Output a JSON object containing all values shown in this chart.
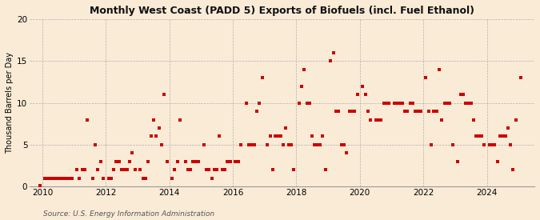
{
  "title": "Monthly West Coast (PADD 5) Exports of Biofuels (incl. Fuel Ethanol)",
  "ylabel": "Thousand Barrels per Day",
  "source": "Source: U.S. Energy Information Administration",
  "background_color": "#faebd7",
  "marker_color": "#cc0000",
  "xlim_left": 2009.6,
  "xlim_right": 2025.5,
  "ylim_bottom": 0,
  "ylim_top": 20,
  "yticks": [
    0,
    5,
    10,
    15,
    20
  ],
  "xticks": [
    2010,
    2012,
    2014,
    2016,
    2018,
    2020,
    2022,
    2024
  ],
  "data_x": [
    2009.92,
    2010.08,
    2010.17,
    2010.25,
    2010.33,
    2010.42,
    2010.5,
    2010.58,
    2010.67,
    2010.75,
    2010.83,
    2010.92,
    2011.08,
    2011.17,
    2011.25,
    2011.33,
    2011.42,
    2011.58,
    2011.67,
    2011.75,
    2011.83,
    2011.92,
    2012.08,
    2012.17,
    2012.25,
    2012.33,
    2012.42,
    2012.5,
    2012.58,
    2012.67,
    2012.75,
    2012.83,
    2012.92,
    2013.08,
    2013.17,
    2013.25,
    2013.33,
    2013.42,
    2013.5,
    2013.58,
    2013.67,
    2013.75,
    2013.83,
    2013.92,
    2014.08,
    2014.17,
    2014.25,
    2014.33,
    2014.5,
    2014.58,
    2014.67,
    2014.75,
    2014.83,
    2014.92,
    2015.08,
    2015.17,
    2015.25,
    2015.33,
    2015.42,
    2015.5,
    2015.58,
    2015.67,
    2015.75,
    2015.83,
    2015.92,
    2016.08,
    2016.17,
    2016.25,
    2016.42,
    2016.5,
    2016.58,
    2016.67,
    2016.75,
    2016.83,
    2016.92,
    2017.08,
    2017.17,
    2017.25,
    2017.33,
    2017.42,
    2017.5,
    2017.58,
    2017.67,
    2017.75,
    2017.83,
    2017.92,
    2018.08,
    2018.17,
    2018.25,
    2018.33,
    2018.42,
    2018.5,
    2018.58,
    2018.67,
    2018.75,
    2018.83,
    2018.92,
    2019.08,
    2019.17,
    2019.25,
    2019.33,
    2019.42,
    2019.5,
    2019.58,
    2019.67,
    2019.75,
    2019.83,
    2019.92,
    2020.08,
    2020.17,
    2020.25,
    2020.33,
    2020.5,
    2020.58,
    2020.67,
    2020.75,
    2020.83,
    2020.92,
    2021.08,
    2021.17,
    2021.25,
    2021.33,
    2021.42,
    2021.5,
    2021.58,
    2021.67,
    2021.75,
    2021.83,
    2021.92,
    2022.08,
    2022.17,
    2022.25,
    2022.33,
    2022.42,
    2022.5,
    2022.58,
    2022.67,
    2022.75,
    2022.83,
    2022.92,
    2023.08,
    2023.17,
    2023.25,
    2023.33,
    2023.42,
    2023.5,
    2023.58,
    2023.67,
    2023.75,
    2023.83,
    2023.92,
    2024.08,
    2024.17,
    2024.25,
    2024.33,
    2024.42,
    2024.5,
    2024.58,
    2024.67,
    2024.75,
    2024.83,
    2024.92,
    2025.08
  ],
  "data_y": [
    0.1,
    1.0,
    1.0,
    1.0,
    1.0,
    1.0,
    1.0,
    1.0,
    1.0,
    1.0,
    1.0,
    1.0,
    2.0,
    1.0,
    2.0,
    2.0,
    8.0,
    1.0,
    5.0,
    2.0,
    3.0,
    1.0,
    1.0,
    1.0,
    2.0,
    3.0,
    3.0,
    2.0,
    2.0,
    2.0,
    3.0,
    4.0,
    2.0,
    2.0,
    1.0,
    1.0,
    3.0,
    6.0,
    8.0,
    6.0,
    7.0,
    5.0,
    11.0,
    3.0,
    1.0,
    2.0,
    3.0,
    8.0,
    3.0,
    2.0,
    2.0,
    3.0,
    3.0,
    3.0,
    5.0,
    2.0,
    2.0,
    1.0,
    2.0,
    2.0,
    6.0,
    2.0,
    2.0,
    3.0,
    3.0,
    3.0,
    3.0,
    5.0,
    10.0,
    5.0,
    5.0,
    5.0,
    9.0,
    10.0,
    13.0,
    5.0,
    6.0,
    2.0,
    6.0,
    6.0,
    6.0,
    5.0,
    7.0,
    5.0,
    5.0,
    2.0,
    10.0,
    12.0,
    14.0,
    10.0,
    10.0,
    6.0,
    5.0,
    5.0,
    5.0,
    6.0,
    2.0,
    15.0,
    16.0,
    9.0,
    9.0,
    5.0,
    5.0,
    4.0,
    9.0,
    9.0,
    9.0,
    11.0,
    12.0,
    11.0,
    9.0,
    8.0,
    8.0,
    8.0,
    8.0,
    10.0,
    10.0,
    10.0,
    10.0,
    10.0,
    10.0,
    10.0,
    9.0,
    9.0,
    10.0,
    10.0,
    9.0,
    9.0,
    9.0,
    13.0,
    9.0,
    5.0,
    9.0,
    9.0,
    14.0,
    8.0,
    10.0,
    10.0,
    10.0,
    5.0,
    3.0,
    11.0,
    11.0,
    10.0,
    10.0,
    10.0,
    8.0,
    6.0,
    6.0,
    6.0,
    5.0,
    5.0,
    5.0,
    5.0,
    3.0,
    6.0,
    6.0,
    6.0,
    7.0,
    5.0,
    2.0,
    8.0,
    13.0
  ]
}
